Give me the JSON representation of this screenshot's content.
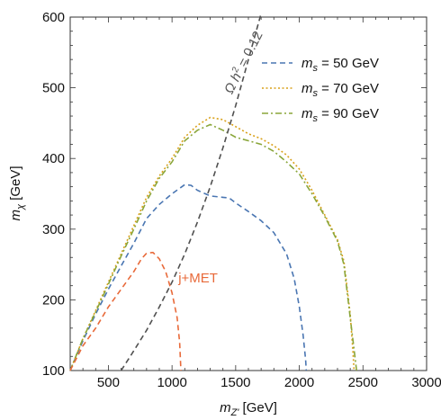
{
  "chart_data": {
    "type": "line",
    "xlabel": "m_Z' [GeV]",
    "ylabel": "m_χ [GeV]",
    "xlim": [
      200,
      3000
    ],
    "ylim": [
      100,
      600
    ],
    "x_ticks": [
      500,
      1000,
      1500,
      2000,
      2500,
      3000
    ],
    "y_ticks": [
      100,
      200,
      300,
      400,
      500,
      600
    ],
    "x_tick_labels": [
      "500",
      "1000",
      "1500",
      "2000",
      "2500",
      "3000"
    ],
    "y_tick_labels": [
      "100",
      "200",
      "300",
      "400",
      "500",
      "600"
    ],
    "grid": false,
    "legend_position": "top-right",
    "series": [
      {
        "name": "m_s = 50 GeV",
        "label_parts": {
          "sym": "m",
          "sub": "s",
          "rest": " = 50 GeV"
        },
        "color": "#4a76b2",
        "style": "dashed",
        "points": [
          [
            200,
            100
          ],
          [
            300,
            142
          ],
          [
            400,
            180
          ],
          [
            500,
            215
          ],
          [
            600,
            248
          ],
          [
            700,
            280
          ],
          [
            800,
            315
          ],
          [
            900,
            335
          ],
          [
            1000,
            350
          ],
          [
            1100,
            363
          ],
          [
            1150,
            362
          ],
          [
            1200,
            355
          ],
          [
            1300,
            347
          ],
          [
            1400,
            345
          ],
          [
            1450,
            344
          ],
          [
            1500,
            337
          ],
          [
            1600,
            325
          ],
          [
            1700,
            312
          ],
          [
            1800,
            295
          ],
          [
            1900,
            265
          ],
          [
            1960,
            230
          ],
          [
            2000,
            190
          ],
          [
            2030,
            150
          ],
          [
            2050,
            115
          ],
          [
            2055,
            100
          ]
        ]
      },
      {
        "name": "m_s = 70 GeV",
        "label_parts": {
          "sym": "m",
          "sub": "s",
          "rest": " = 70 GeV"
        },
        "color": "#d9a11a",
        "style": "dotted",
        "points": [
          [
            200,
            100
          ],
          [
            300,
            145
          ],
          [
            400,
            185
          ],
          [
            500,
            225
          ],
          [
            600,
            265
          ],
          [
            700,
            305
          ],
          [
            800,
            345
          ],
          [
            900,
            375
          ],
          [
            1000,
            400
          ],
          [
            1100,
            430
          ],
          [
            1200,
            447
          ],
          [
            1300,
            458
          ],
          [
            1400,
            455
          ],
          [
            1500,
            445
          ],
          [
            1600,
            435
          ],
          [
            1700,
            428
          ],
          [
            1800,
            418
          ],
          [
            1900,
            405
          ],
          [
            2000,
            385
          ],
          [
            2100,
            355
          ],
          [
            2200,
            320
          ],
          [
            2300,
            285
          ],
          [
            2350,
            255
          ],
          [
            2400,
            180
          ],
          [
            2420,
            130
          ],
          [
            2430,
            100
          ]
        ]
      },
      {
        "name": "m_s = 90 GeV",
        "label_parts": {
          "sym": "m",
          "sub": "s",
          "rest": " = 90 GeV"
        },
        "color": "#8aa63a",
        "style": "dashdot",
        "points": [
          [
            200,
            100
          ],
          [
            300,
            145
          ],
          [
            400,
            183
          ],
          [
            500,
            222
          ],
          [
            600,
            262
          ],
          [
            700,
            300
          ],
          [
            800,
            340
          ],
          [
            900,
            372
          ],
          [
            1000,
            395
          ],
          [
            1100,
            425
          ],
          [
            1200,
            440
          ],
          [
            1300,
            448
          ],
          [
            1400,
            440
          ],
          [
            1500,
            430
          ],
          [
            1600,
            425
          ],
          [
            1700,
            420
          ],
          [
            1800,
            410
          ],
          [
            1900,
            395
          ],
          [
            2000,
            378
          ],
          [
            2100,
            350
          ],
          [
            2200,
            318
          ],
          [
            2300,
            283
          ],
          [
            2350,
            250
          ],
          [
            2400,
            175
          ],
          [
            2430,
            130
          ],
          [
            2450,
            100
          ]
        ]
      },
      {
        "name": "j+MET",
        "color": "#e86a3a",
        "style": "dashed",
        "points": [
          [
            200,
            100
          ],
          [
            300,
            135
          ],
          [
            400,
            160
          ],
          [
            500,
            190
          ],
          [
            600,
            215
          ],
          [
            700,
            240
          ],
          [
            760,
            258
          ],
          [
            800,
            266
          ],
          [
            850,
            267
          ],
          [
            900,
            258
          ],
          [
            950,
            240
          ],
          [
            1000,
            210
          ],
          [
            1040,
            175
          ],
          [
            1060,
            140
          ],
          [
            1070,
            100
          ]
        ]
      },
      {
        "name": "Ω h² = 0.12",
        "label_parts": {
          "omega": "Ω",
          "h": " h",
          "sup": "2",
          "rest": " = 0.12"
        },
        "color": "#505050",
        "style": "dashed",
        "points": [
          [
            600,
            100
          ],
          [
            700,
            128
          ],
          [
            800,
            157
          ],
          [
            900,
            190
          ],
          [
            1000,
            225
          ],
          [
            1100,
            265
          ],
          [
            1200,
            310
          ],
          [
            1300,
            360
          ],
          [
            1400,
            415
          ],
          [
            1500,
            475
          ],
          [
            1600,
            540
          ],
          [
            1700,
            605
          ]
        ]
      }
    ],
    "annotations": [
      {
        "text": "j+MET",
        "x": 1050,
        "y": 225
      },
      {
        "text": "Ω h² = 0.12",
        "x": 1470,
        "y": 490,
        "angle": -63
      }
    ]
  }
}
